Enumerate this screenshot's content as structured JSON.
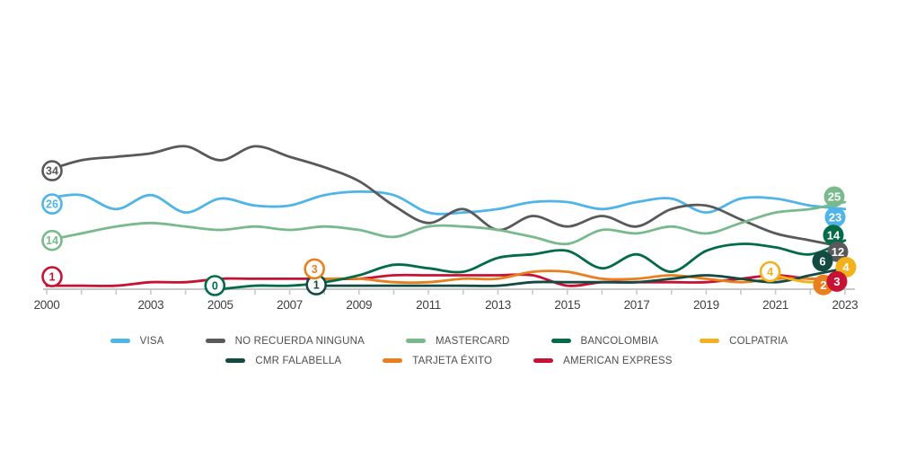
{
  "chart_data": {
    "type": "line",
    "x": [
      2000,
      2001,
      2002,
      2003,
      2004,
      2005,
      2006,
      2007,
      2008,
      2009,
      2010,
      2011,
      2012,
      2013,
      2014,
      2015,
      2016,
      2017,
      2018,
      2019,
      2020,
      2021,
      2022,
      2023
    ],
    "axis": {
      "color": "#c7c8ca",
      "label_color": "#414042",
      "labeled_years": [
        2000,
        2003,
        2005,
        2007,
        2009,
        2011,
        2013,
        2015,
        2017,
        2019,
        2021,
        2023
      ]
    },
    "ylim": [
      0,
      45
    ],
    "grid": false,
    "legend_position": "bottom",
    "series": [
      {
        "name": "VISA",
        "color": "#4fb4e8",
        "start_year": 2000,
        "start_label": "26",
        "end_label": "23",
        "values": [
          26,
          27,
          23,
          27,
          22,
          26,
          24,
          24,
          27,
          28,
          27,
          22,
          22,
          23,
          25,
          25,
          23,
          25,
          26,
          22,
          26,
          26,
          24,
          23
        ]
      },
      {
        "name": "NO RECUERDA NINGUNA",
        "color": "#58595b",
        "start_year": 2000,
        "start_label": "34",
        "end_label": "12",
        "values": [
          34,
          37,
          38,
          39,
          41,
          37,
          41,
          38,
          35,
          31,
          24,
          19,
          23,
          17,
          21,
          18,
          21,
          18,
          23,
          24,
          20,
          16,
          14,
          12
        ]
      },
      {
        "name": "MASTERCARD",
        "color": "#79ba8c",
        "start_year": 2000,
        "start_label": "14",
        "end_label": "25",
        "values": [
          14,
          16,
          18,
          19,
          18,
          17,
          18,
          17,
          18,
          17,
          15,
          18,
          18,
          17,
          15,
          13,
          17,
          16,
          18,
          16,
          19,
          22,
          23,
          25
        ]
      },
      {
        "name": "BANCOLOMBIA",
        "color": "#046b47",
        "start_year": 2005,
        "start_label": "0",
        "end_label": "14",
        "values": [
          0,
          1,
          1,
          2,
          4,
          7,
          6,
          5,
          9,
          10,
          11,
          6,
          10,
          5,
          11,
          13,
          12,
          10,
          14
        ]
      },
      {
        "name": "COLPATRIA",
        "color": "#f2b11d",
        "start_year": 2021,
        "start_label": "4",
        "end_label": "4",
        "values": [
          4,
          2,
          4
        ]
      },
      {
        "name": "CMR FALABELLA",
        "color": "#134a42",
        "start_year": 2008,
        "start_label": "1",
        "end_label": "6",
        "values": [
          1,
          1,
          1,
          1,
          1,
          1,
          2,
          2,
          2,
          2,
          3,
          4,
          3,
          2,
          4,
          6
        ]
      },
      {
        "name": "TARJETA ÉXITO",
        "color": "#e8801f",
        "start_year": 2008,
        "start_label": "3",
        "end_label": "2",
        "values": [
          3,
          3,
          2,
          2,
          3,
          3,
          5,
          5,
          3,
          3,
          4,
          3,
          2,
          3,
          3,
          2
        ]
      },
      {
        "name": "AMERICAN EXPRESS",
        "color": "#c81235",
        "start_year": 2000,
        "start_label": "1",
        "end_label": "3",
        "values": [
          1,
          1,
          1,
          2,
          2,
          3,
          3,
          3,
          3,
          3,
          4,
          4,
          4,
          4,
          4,
          1,
          2,
          2,
          2,
          2,
          3,
          4,
          3,
          3
        ]
      }
    ],
    "legend_rows": [
      [
        "VISA",
        "NO RECUERDA NINGUNA",
        "MASTERCARD",
        "BANCOLOMBIA",
        "COLPATRIA"
      ],
      [
        "CMR FALABELLA",
        "TARJETA ÉXITO",
        "AMERICAN EXPRESS"
      ]
    ]
  }
}
